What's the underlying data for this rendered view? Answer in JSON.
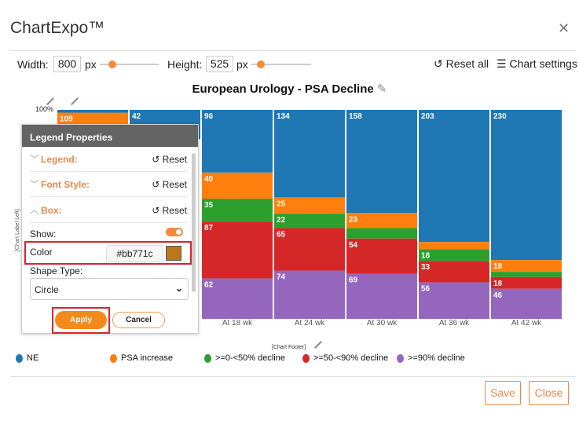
{
  "app": {
    "title": "ChartExpo™"
  },
  "toolbar": {
    "width_label": "Width:",
    "width_value": "800",
    "height_label": "Height:",
    "height_value": "525",
    "unit": "px",
    "reset_all": "Reset all",
    "chart_settings": "Chart settings"
  },
  "chart_data": {
    "type": "bar",
    "stacked": "percent",
    "title": "European Urology - PSA Decline",
    "y_tick": "100%",
    "ylabel": "[Chart Label Left]",
    "footer": "[Chart Footer]",
    "categories": [
      null,
      null,
      "At 18 wk",
      "At 24 wk",
      "At 30 wk",
      "At 36 wk",
      "At 42 wk"
    ],
    "series": [
      {
        "name": "NE",
        "color": "#1f77b4",
        "values": [
          4,
          42,
          96,
          134,
          158,
          203,
          230
        ],
        "show_label": [
          false,
          true,
          true,
          true,
          true,
          true,
          true
        ]
      },
      {
        "name": "PSA increase",
        "color": "#ff7f0e",
        "values": [
          109,
          null,
          40,
          25,
          23,
          11,
          18
        ],
        "show_label": [
          true,
          false,
          true,
          true,
          true,
          false,
          true
        ]
      },
      {
        "name": ">=0-<50% decline",
        "color": "#2ca02c",
        "values": [
          null,
          null,
          35,
          22,
          16,
          18,
          8
        ],
        "show_label": [
          false,
          false,
          true,
          true,
          false,
          true,
          false
        ]
      },
      {
        "name": ">=50-<90% decline",
        "color": "#d62728",
        "values": [
          null,
          null,
          87,
          65,
          54,
          33,
          18
        ],
        "show_label": [
          false,
          false,
          true,
          true,
          true,
          true,
          true
        ]
      },
      {
        "name": ">=90% decline",
        "color": "#9467bd",
        "values": [
          null,
          null,
          62,
          74,
          69,
          56,
          46
        ],
        "show_label": [
          false,
          false,
          true,
          true,
          true,
          true,
          true
        ]
      }
    ]
  },
  "panel": {
    "title": "Legend Properties",
    "sections": [
      {
        "label": "Legend:"
      },
      {
        "label": "Font Style:"
      },
      {
        "label": "Box:"
      }
    ],
    "reset": "Reset",
    "show_label": "Show:",
    "color_label": "Color",
    "color_value": "#bb771c",
    "shape_label": "Shape Type:",
    "shape_value": "Circle",
    "apply": "Apply",
    "cancel": "Cancel"
  },
  "footer": {
    "save": "Save",
    "close": "Close"
  }
}
